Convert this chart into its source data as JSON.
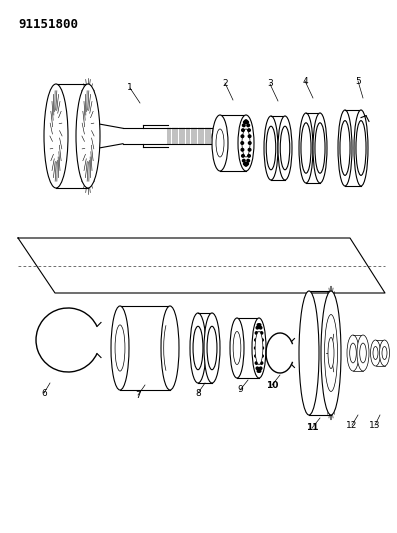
{
  "title": "91151800",
  "bg_color": "#ffffff",
  "line_color": "#000000",
  "title_fontsize": 9,
  "label_fontsize": 6.5
}
